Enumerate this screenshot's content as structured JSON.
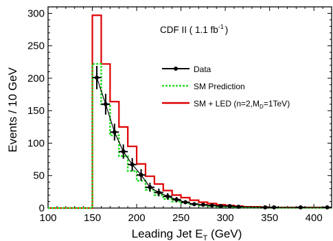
{
  "chart_data": {
    "type": "line",
    "annotation": "CDF II ( 1.1 fb",
    "annotation_sup": "-1",
    "annotation_end": ")",
    "xlabel_main": "Leading Jet E",
    "xlabel_sub": "T",
    "xlabel_unit": " (GeV)",
    "ylabel": "Events / 10 GeV",
    "xlim": [
      100,
      420
    ],
    "ylim": [
      0,
      310
    ],
    "xticks": [
      100,
      150,
      200,
      250,
      300,
      350,
      400
    ],
    "yticks": [
      0,
      50,
      100,
      150,
      200,
      250,
      300
    ],
    "colors": {
      "data": "#000000",
      "sm": "#22dd22",
      "led": "#dd0000"
    },
    "legend": {
      "placement": "center-right",
      "data_label": "Data",
      "sm_label": "SM Prediction",
      "led_label_prefix": "SM + LED (n=2,M",
      "led_label_sub": "D",
      "led_label_suffix": "=1TeV)"
    },
    "data_points": [
      {
        "x": 155,
        "y": 201,
        "err": 18
      },
      {
        "x": 165,
        "y": 160,
        "err": 16
      },
      {
        "x": 175,
        "y": 117,
        "err": 13
      },
      {
        "x": 185,
        "y": 87,
        "err": 11
      },
      {
        "x": 195,
        "y": 67,
        "err": 10
      },
      {
        "x": 205,
        "y": 51,
        "err": 9
      },
      {
        "x": 215,
        "y": 32,
        "err": 7
      },
      {
        "x": 225,
        "y": 24,
        "err": 6
      },
      {
        "x": 235,
        "y": 18,
        "err": 5
      },
      {
        "x": 245,
        "y": 13,
        "err": 4
      },
      {
        "x": 255,
        "y": 9,
        "err": 3
      },
      {
        "x": 265,
        "y": 6,
        "err": 3
      },
      {
        "x": 275,
        "y": 5,
        "err": 2
      },
      {
        "x": 285,
        "y": 4,
        "err": 2
      },
      {
        "x": 295,
        "y": 3,
        "err": 2
      },
      {
        "x": 305,
        "y": 3,
        "err": 2
      },
      {
        "x": 315,
        "y": 2,
        "err": 1
      },
      {
        "x": 345,
        "y": 1,
        "err": 1
      },
      {
        "x": 355,
        "y": 1,
        "err": 1
      },
      {
        "x": 385,
        "y": 1,
        "err": 1
      },
      {
        "x": 415,
        "y": 1,
        "err": 1
      }
    ],
    "sm_edges": [
      100,
      150,
      160,
      170,
      180,
      190,
      200,
      210,
      220,
      230,
      240,
      250,
      260,
      270,
      280,
      290,
      300,
      310,
      320,
      330,
      340,
      350,
      360,
      370,
      380,
      390,
      400,
      410,
      420
    ],
    "sm_values": [
      0,
      222,
      160,
      112,
      80,
      57,
      42,
      28,
      20,
      14,
      10,
      8,
      6,
      4,
      3,
      2,
      2,
      1,
      1,
      1,
      1,
      0.5,
      0.5,
      0.5,
      0.5,
      0.5,
      0.5,
      0.5
    ],
    "led_edges": [
      100,
      150,
      160,
      170,
      180,
      190,
      200,
      210,
      220,
      230,
      240,
      250,
      260,
      270,
      280,
      290,
      300,
      310,
      320,
      330,
      340,
      350,
      360,
      370,
      380,
      390,
      400,
      410,
      420
    ],
    "led_values": [
      0,
      297,
      222,
      164,
      125,
      95,
      68,
      49,
      37,
      27,
      20,
      16,
      12,
      9,
      7,
      5,
      4,
      3,
      2,
      2,
      1.5,
      1,
      1,
      1,
      1,
      1,
      1,
      1
    ]
  }
}
